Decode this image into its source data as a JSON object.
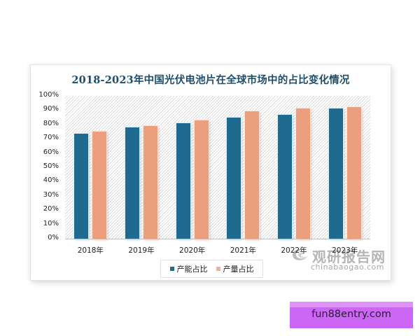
{
  "chart_data": {
    "type": "bar",
    "title": "2018-2023年中国光伏电池片在全球市场中的占比变化情况",
    "categories": [
      "2018年",
      "2019年",
      "2020年",
      "2021年",
      "2022年",
      "2023年"
    ],
    "series": [
      {
        "name": "产能占比",
        "color": "#1f6a8f",
        "values": [
          73.5,
          78,
          81,
          85,
          87,
          91
        ]
      },
      {
        "name": "产量占比",
        "color": "#eb9f7e",
        "values": [
          75,
          79,
          83,
          89,
          91,
          92
        ]
      }
    ],
    "xlabel": "",
    "ylabel": "",
    "ylim": [
      0,
      100
    ],
    "yticks": [
      "0%",
      "10%",
      "20%",
      "30%",
      "40%",
      "50%",
      "60%",
      "70%",
      "80%",
      "90%",
      "100%"
    ],
    "grid": false,
    "legend_position": "bottom"
  },
  "watermark": {
    "cn": "观研报告网",
    "en": "chinabaogao.com"
  },
  "badge": {
    "text": "fun88entry.com"
  }
}
